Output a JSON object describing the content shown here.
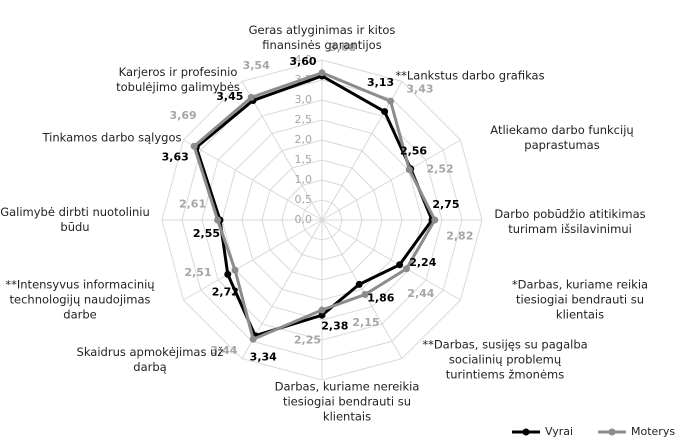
{
  "chart_data": {
    "type": "radar",
    "categories": [
      "Geras atlyginimas ir kitos finansinės garantijos",
      "**Lankstus darbo grafikas",
      "Atliekamo darbo funkcijų paprastumas",
      "Darbo pobūdžio atitikimas turimam išsilavinimui",
      "*Darbas, kuriame reikia tiesiogiai bendrauti su klientais",
      "**Darbas, susijęs su pagalba socialinių problemų turintiems žmonėms",
      "Darbas, kuriame nereikia tiesiogiai bendrauti su klientais",
      "Skaidrus apmokėjimas už darbą",
      "**Intensyvus informacinių technologijų naudojimas darbe",
      "Galimybė dirbti nuotoliniu būdu",
      "Tinkamos darbo sąlygos",
      "Karjeros ir profesinio tobulėjimo galimybės"
    ],
    "series": [
      {
        "name": "Vyrai",
        "color": "#000000",
        "values": [
          3.6,
          3.13,
          2.56,
          2.75,
          2.24,
          1.86,
          2.38,
          3.34,
          2.72,
          2.55,
          3.63,
          3.45
        ],
        "value_labels": [
          "3,60",
          "3,13",
          "2,56",
          "2,75",
          "2,24",
          "1,86",
          "2,38",
          "3,34",
          "2,72",
          "2,55",
          "3,63",
          "3,45"
        ]
      },
      {
        "name": "Moterys",
        "color": "#8c8c8c",
        "values": [
          3.68,
          3.43,
          2.52,
          2.82,
          2.44,
          2.15,
          2.25,
          3.44,
          2.51,
          2.61,
          3.69,
          3.54
        ],
        "value_labels": [
          "3,68",
          "3,43",
          "2,52",
          "2,82",
          "2,44",
          "2,15",
          "2,25",
          "3,44",
          "2,51",
          "2,61",
          "3,69",
          "3,54"
        ]
      }
    ],
    "rlim": [
      0,
      4
    ],
    "rticks": [
      {
        "value": 0,
        "label": "0,0"
      },
      {
        "value": 0.5,
        "label": "0,5"
      },
      {
        "value": 1,
        "label": "1,0"
      },
      {
        "value": 1.5,
        "label": "1,5"
      },
      {
        "value": 2,
        "label": "2,0"
      },
      {
        "value": 2.5,
        "label": "2,5"
      },
      {
        "value": 3,
        "label": "3,0"
      },
      {
        "value": 3.5,
        "label": "3,5"
      },
      {
        "value": 4,
        "label": "4,0"
      }
    ],
    "grid": true,
    "legend": "bottom-right"
  }
}
